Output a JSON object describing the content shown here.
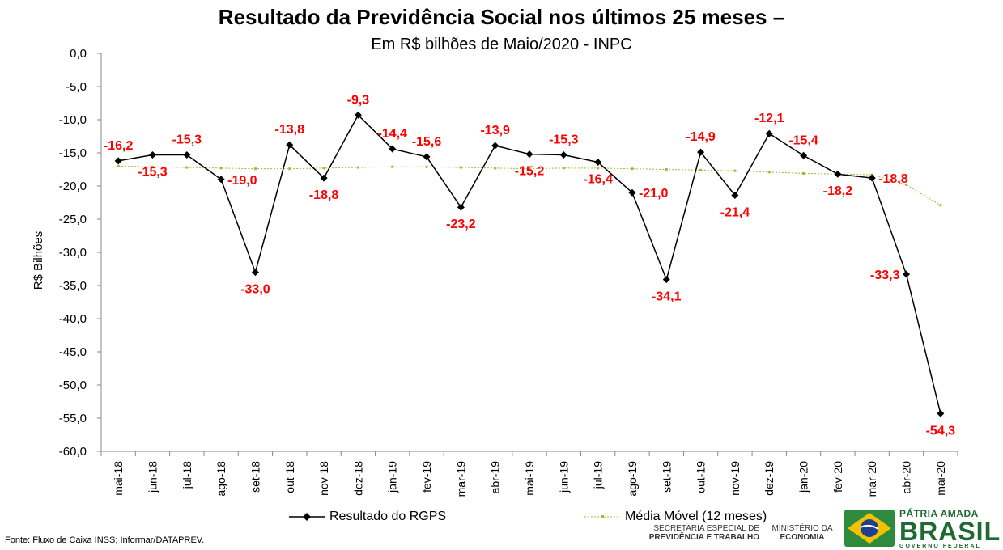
{
  "header": {
    "title": "Resultado da Previdência Social nos últimos 25 meses –",
    "subtitle": "Em R$ bilhões de Maio/2020 - INPC"
  },
  "chart_data": {
    "type": "line",
    "ylabel": "R$ Bilhões",
    "ylim": [
      -60,
      0
    ],
    "ytick_labels": [
      "0,0",
      "-5,0",
      "-10,0",
      "-15,0",
      "-20,0",
      "-25,0",
      "-30,0",
      "-35,0",
      "-40,0",
      "-45,0",
      "-50,0",
      "-55,0",
      "-60,0"
    ],
    "yticks": [
      0,
      -5,
      -10,
      -15,
      -20,
      -25,
      -30,
      -35,
      -40,
      -45,
      -50,
      -55,
      -60
    ],
    "categories": [
      "mai-18",
      "jun-18",
      "jul-18",
      "ago-18",
      "set-18",
      "out-18",
      "nov-18",
      "dez-18",
      "jan-19",
      "fev-19",
      "mar-19",
      "abr-19",
      "mai-19",
      "jun-19",
      "jul-19",
      "ago-19",
      "set-19",
      "out-19",
      "nov-19",
      "dez-19",
      "jan-20",
      "fev-20",
      "mar-20",
      "abr-20",
      "mai-20"
    ],
    "series": [
      {
        "name": "Resultado do RGPS",
        "color": "#000000",
        "marker": "diamond",
        "values": [
          -16.2,
          -15.3,
          -15.3,
          -19.0,
          -33.0,
          -13.8,
          -18.8,
          -9.3,
          -14.4,
          -15.6,
          -23.2,
          -13.9,
          -15.2,
          -15.3,
          -16.4,
          -21.0,
          -34.1,
          -14.9,
          -21.4,
          -12.1,
          -15.4,
          -18.2,
          -18.8,
          -33.3,
          -54.3
        ]
      },
      {
        "name": "Média Móvel (12 meses)",
        "color": "#a8b83a",
        "marker": "small-dot",
        "values": [
          -17.0,
          -17.1,
          -17.2,
          -17.3,
          -17.4,
          -17.4,
          -17.3,
          -17.2,
          -17.1,
          -17.1,
          -17.2,
          -17.3,
          -17.4,
          -17.3,
          -17.3,
          -17.4,
          -17.5,
          -17.6,
          -17.7,
          -17.9,
          -18.1,
          -18.2,
          -18.3,
          -19.8,
          -22.9
        ]
      }
    ],
    "data_labels": [
      {
        "i": 0,
        "text": "-16,2",
        "pos": "above"
      },
      {
        "i": 1,
        "text": "-15,3",
        "pos": "below"
      },
      {
        "i": 2,
        "text": "-15,3",
        "pos": "above"
      },
      {
        "i": 3,
        "text": "-19,0",
        "pos": "right"
      },
      {
        "i": 4,
        "text": "-33,0",
        "pos": "below"
      },
      {
        "i": 5,
        "text": "-13,8",
        "pos": "above"
      },
      {
        "i": 6,
        "text": "-18,8",
        "pos": "below"
      },
      {
        "i": 7,
        "text": "-9,3",
        "pos": "above"
      },
      {
        "i": 8,
        "text": "-14,4",
        "pos": "above"
      },
      {
        "i": 9,
        "text": "-15,6",
        "pos": "above"
      },
      {
        "i": 10,
        "text": "-23,2",
        "pos": "below"
      },
      {
        "i": 11,
        "text": "-13,9",
        "pos": "above"
      },
      {
        "i": 12,
        "text": "-15,2",
        "pos": "below"
      },
      {
        "i": 13,
        "text": "-15,3",
        "pos": "above"
      },
      {
        "i": 14,
        "text": "-16,4",
        "pos": "below"
      },
      {
        "i": 15,
        "text": "-21,0",
        "pos": "right"
      },
      {
        "i": 16,
        "text": "-34,1",
        "pos": "below"
      },
      {
        "i": 17,
        "text": "-14,9",
        "pos": "above"
      },
      {
        "i": 18,
        "text": "-21,4",
        "pos": "below"
      },
      {
        "i": 19,
        "text": "-12,1",
        "pos": "above"
      },
      {
        "i": 20,
        "text": "-15,4",
        "pos": "above"
      },
      {
        "i": 21,
        "text": "-18,2",
        "pos": "below"
      },
      {
        "i": 22,
        "text": "-18,8",
        "pos": "right"
      },
      {
        "i": 23,
        "text": "-33,3",
        "pos": "left"
      },
      {
        "i": 24,
        "text": "-54,3",
        "pos": "below"
      }
    ],
    "label_color": "#ff0000",
    "legend_placement": "bottom",
    "grid": false
  },
  "source": "Fonte: Fluxo de Caixa INSS; Informar/DATAPREV.",
  "logos": {
    "secretaria_line1": "SECRETARIA ESPECIAL DE",
    "secretaria_line2": "PREVIDÊNCIA E TRABALHO",
    "ministerio_line1": "MINISTÉRIO DA",
    "ministerio_line2": "ECONOMIA",
    "brand_top": "PÁTRIA AMADA",
    "brand_main": "BRASIL",
    "brand_bottom": "GOVERNO FEDERAL"
  }
}
